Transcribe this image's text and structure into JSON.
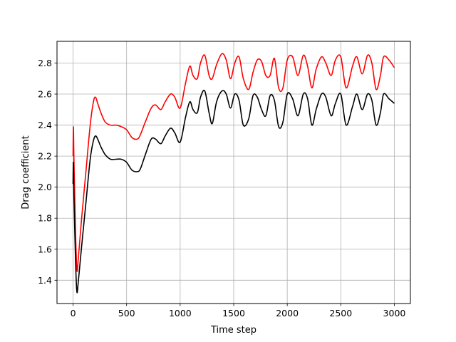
{
  "chart_data": {
    "type": "line",
    "title": "",
    "xlabel": "Time step",
    "ylabel": "Drag coefficient",
    "xlim": [
      -150,
      3150
    ],
    "ylim": [
      1.25,
      2.94
    ],
    "grid": true,
    "xticks": [
      0,
      500,
      1000,
      1500,
      2000,
      2500,
      3000
    ],
    "yticks": [
      1.4,
      1.6,
      1.8,
      2.0,
      2.2,
      2.4,
      2.6,
      2.8
    ],
    "xtick_labels": [
      "0",
      "500",
      "1000",
      "1500",
      "2000",
      "2500",
      "3000"
    ],
    "ytick_labels": [
      "1.4",
      "1.6",
      "1.8",
      "2.0",
      "2.2",
      "2.4",
      "2.6",
      "2.8"
    ],
    "series": [
      {
        "color": "#ff0000",
        "x": [
          0,
          3,
          8,
          20,
          35,
          50,
          80,
          120,
          160,
          190,
          210,
          230,
          260,
          300,
          350,
          400,
          450,
          500,
          550,
          600,
          630,
          680,
          730,
          770,
          820,
          860,
          910,
          950,
          1000,
          1050,
          1090,
          1120,
          1160,
          1190,
          1230,
          1270,
          1300,
          1340,
          1390,
          1430,
          1470,
          1510,
          1550,
          1590,
          1640,
          1680,
          1720,
          1760,
          1800,
          1840,
          1880,
          1920,
          1960,
          2000,
          2050,
          2100,
          2150,
          2190,
          2230,
          2270,
          2320,
          2360,
          2410,
          2450,
          2500,
          2550,
          2610,
          2650,
          2700,
          2750,
          2790,
          2830,
          2870,
          2900,
          2950,
          3000
        ],
        "y": [
          2.2,
          2.39,
          2.2,
          1.8,
          1.47,
          1.55,
          1.8,
          2.1,
          2.4,
          2.55,
          2.58,
          2.54,
          2.48,
          2.42,
          2.4,
          2.4,
          2.39,
          2.37,
          2.32,
          2.31,
          2.34,
          2.43,
          2.51,
          2.53,
          2.5,
          2.55,
          2.6,
          2.58,
          2.51,
          2.67,
          2.78,
          2.72,
          2.7,
          2.8,
          2.85,
          2.72,
          2.7,
          2.79,
          2.86,
          2.82,
          2.7,
          2.8,
          2.84,
          2.7,
          2.63,
          2.74,
          2.82,
          2.81,
          2.72,
          2.72,
          2.83,
          2.64,
          2.64,
          2.82,
          2.84,
          2.72,
          2.85,
          2.78,
          2.64,
          2.76,
          2.84,
          2.8,
          2.72,
          2.82,
          2.84,
          2.64,
          2.78,
          2.84,
          2.73,
          2.85,
          2.8,
          2.63,
          2.72,
          2.84,
          2.82,
          2.77
        ]
      },
      {
        "color": "#000000",
        "x": [
          0,
          3,
          8,
          20,
          35,
          50,
          80,
          120,
          160,
          190,
          210,
          230,
          260,
          300,
          350,
          400,
          450,
          500,
          550,
          600,
          630,
          680,
          730,
          770,
          820,
          860,
          910,
          950,
          1000,
          1050,
          1090,
          1120,
          1160,
          1190,
          1230,
          1270,
          1300,
          1340,
          1390,
          1430,
          1470,
          1510,
          1550,
          1590,
          1640,
          1680,
          1720,
          1760,
          1800,
          1840,
          1880,
          1920,
          1960,
          2000,
          2050,
          2100,
          2150,
          2190,
          2230,
          2270,
          2320,
          2360,
          2410,
          2450,
          2500,
          2550,
          2610,
          2650,
          2700,
          2750,
          2790,
          2830,
          2870,
          2900,
          2950,
          3000
        ],
        "y": [
          2.02,
          2.16,
          1.95,
          1.6,
          1.33,
          1.4,
          1.62,
          1.9,
          2.18,
          2.3,
          2.33,
          2.31,
          2.26,
          2.21,
          2.18,
          2.18,
          2.18,
          2.16,
          2.11,
          2.1,
          2.12,
          2.22,
          2.31,
          2.31,
          2.28,
          2.33,
          2.38,
          2.35,
          2.29,
          2.45,
          2.55,
          2.5,
          2.48,
          2.58,
          2.62,
          2.48,
          2.41,
          2.55,
          2.62,
          2.6,
          2.51,
          2.6,
          2.56,
          2.4,
          2.44,
          2.59,
          2.58,
          2.5,
          2.46,
          2.59,
          2.56,
          2.39,
          2.42,
          2.6,
          2.57,
          2.46,
          2.6,
          2.57,
          2.4,
          2.5,
          2.6,
          2.58,
          2.46,
          2.54,
          2.6,
          2.4,
          2.52,
          2.6,
          2.5,
          2.6,
          2.56,
          2.4,
          2.48,
          2.6,
          2.57,
          2.54
        ]
      }
    ]
  }
}
